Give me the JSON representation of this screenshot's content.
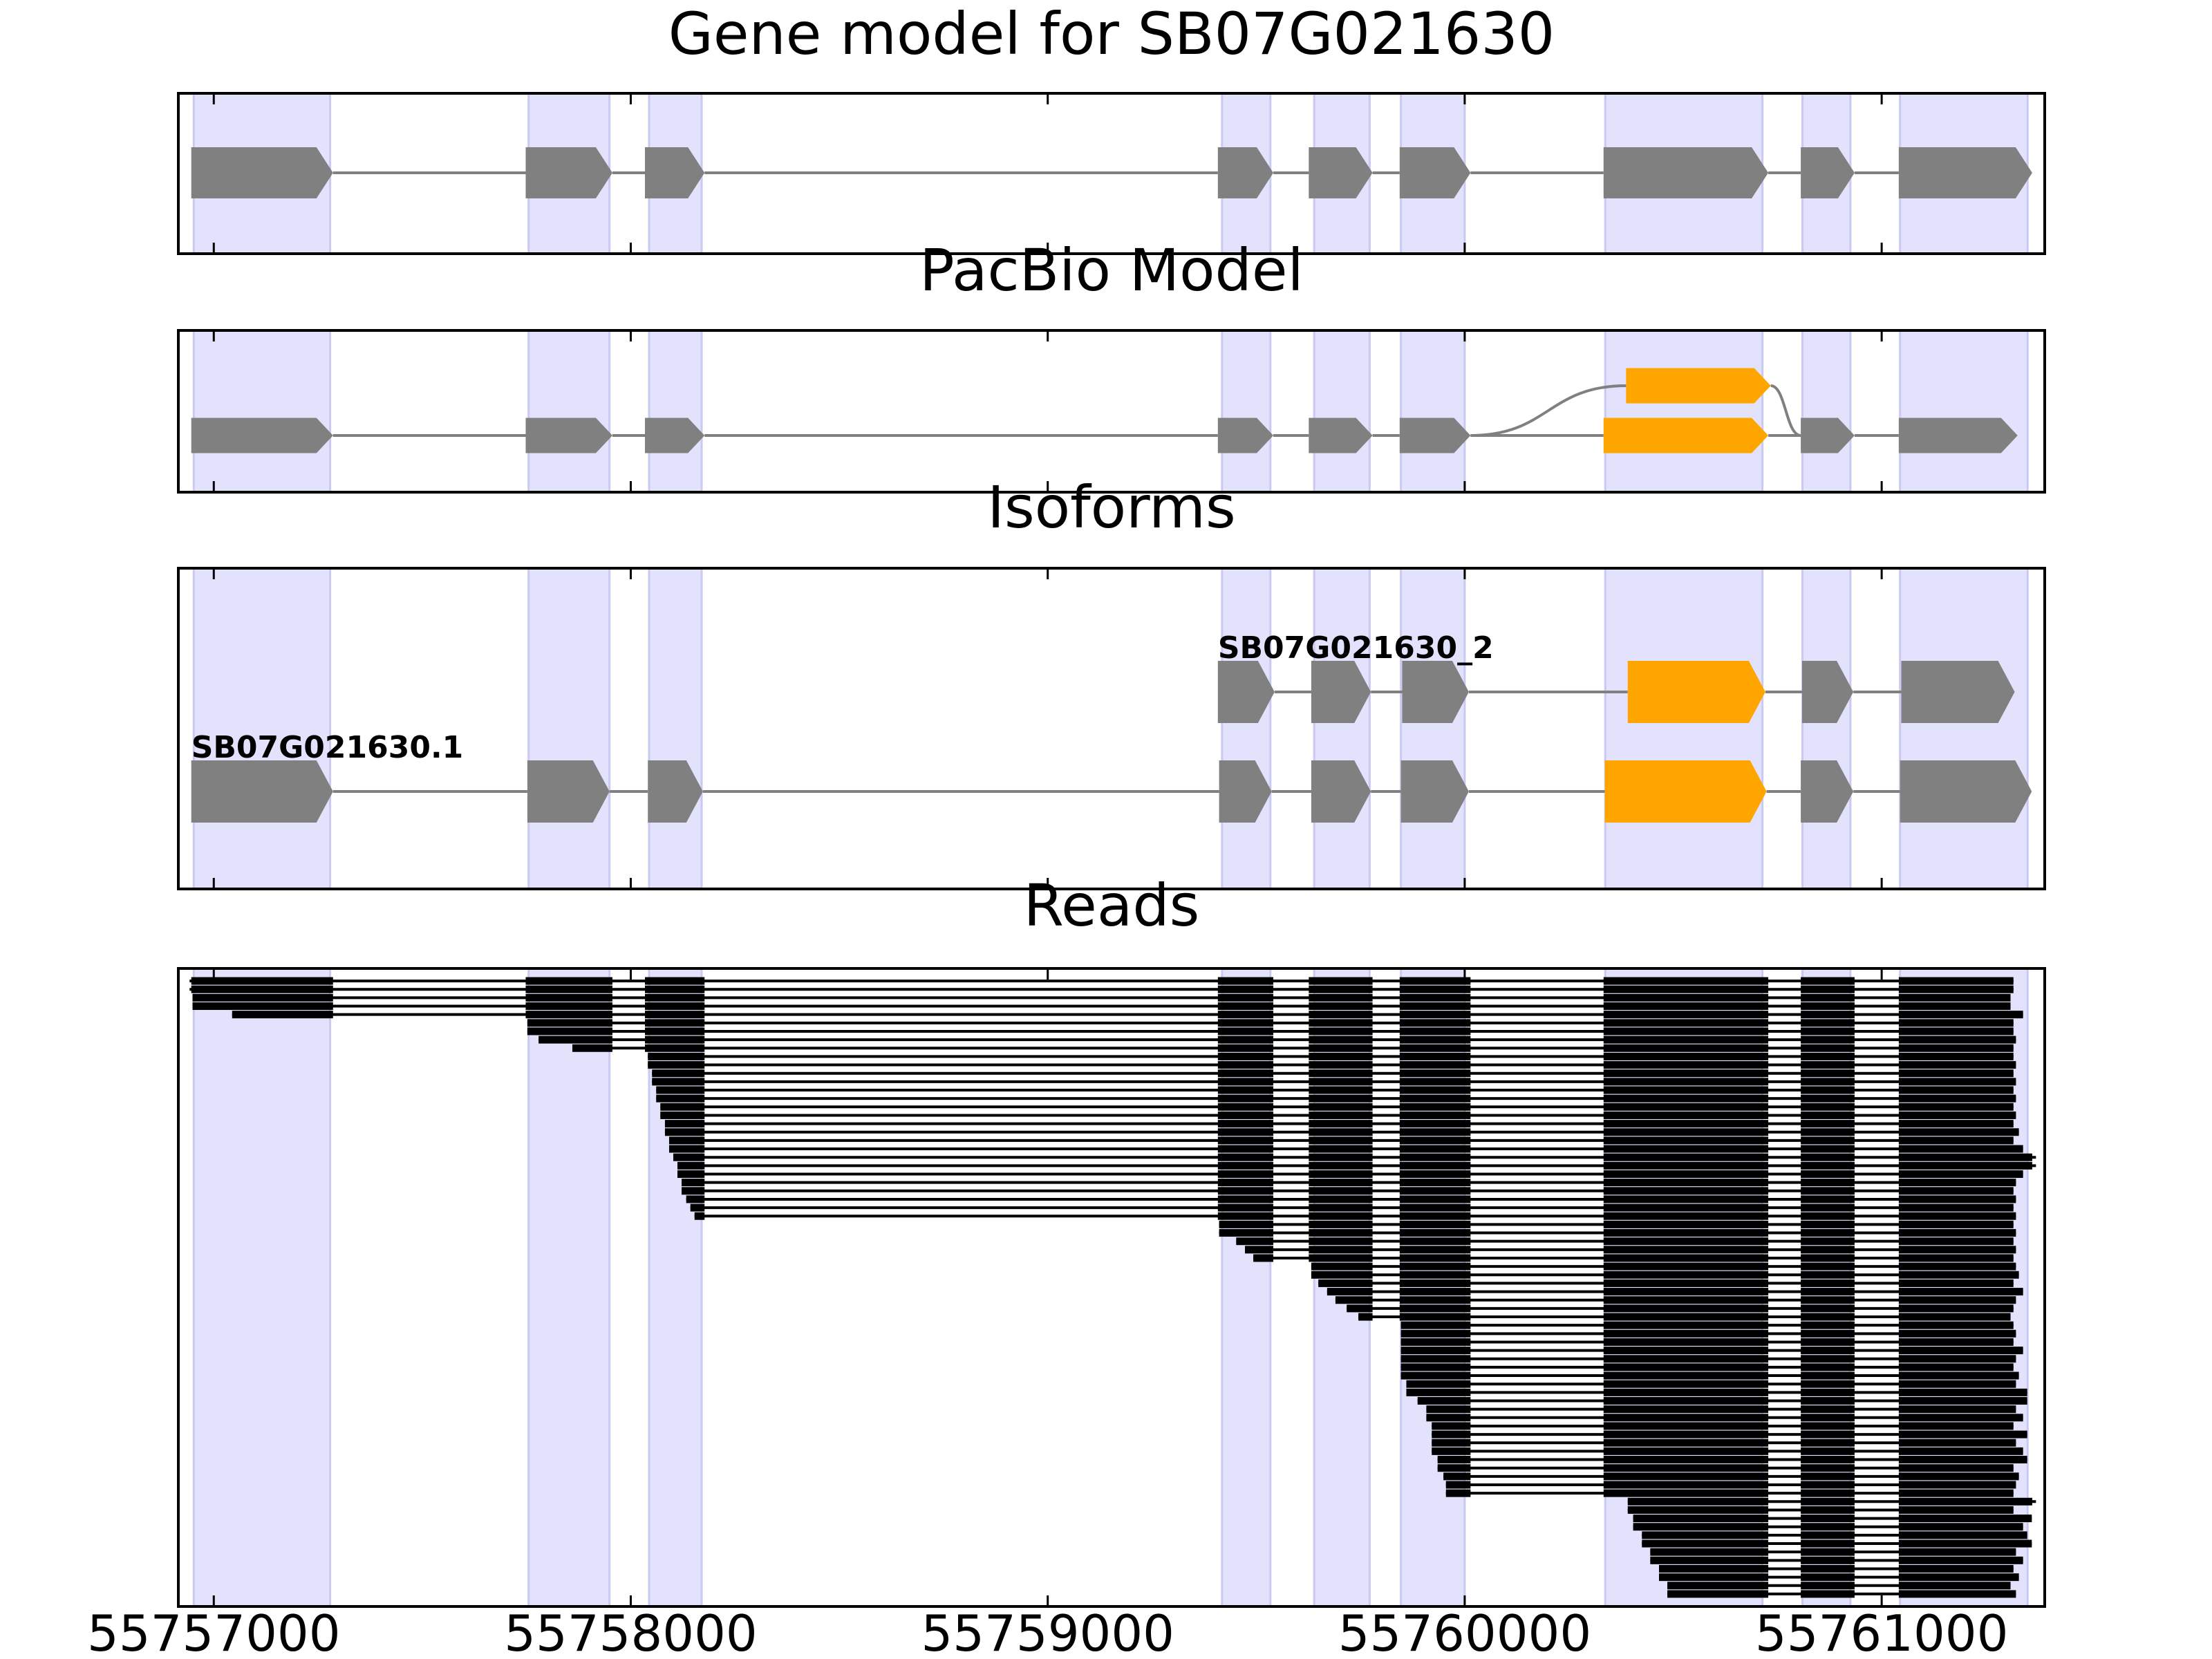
{
  "chart_data": {
    "type": "gene-tracks",
    "xlim": [
      55756915,
      55761391
    ],
    "xticks": [
      55757000,
      55758000,
      55759000,
      55760000,
      55761000
    ],
    "highlight_color": "#e2e2fc",
    "highlights": [
      [
        55756952,
        55757279
      ],
      [
        55757755,
        55757949
      ],
      [
        55758044,
        55758170
      ],
      [
        55759418,
        55759534
      ],
      [
        55759639,
        55759772
      ],
      [
        55759847,
        55760000
      ],
      [
        55760337,
        55760714
      ],
      [
        55760810,
        55760925
      ],
      [
        55761044,
        55761350
      ]
    ],
    "panels": [
      {
        "title": "Gene model for SB07G021630",
        "isoforms": [
          {
            "exons": [
              [
                55756946,
                55757286
              ],
              [
                55757748,
                55757956
              ],
              [
                55758034,
                55758177
              ],
              [
                55759408,
                55759541
              ],
              [
                55759626,
                55759779
              ],
              [
                55759844,
                55760014
              ],
              [
                55760333,
                55760728
              ],
              [
                55760806,
                55760935
              ],
              [
                55761041,
                55761361
              ]
            ],
            "colors": [
              "#808080",
              "#808080",
              "#808080",
              "#808080",
              "#808080",
              "#808080",
              "#808080",
              "#808080",
              "#808080"
            ]
          }
        ]
      },
      {
        "title": "PacBio Model",
        "isoforms": [
          {
            "exons": [
              [
                55756946,
                55757286
              ],
              [
                55757748,
                55757956
              ],
              [
                55758034,
                55758177
              ],
              [
                55759408,
                55759541
              ],
              [
                55759626,
                55759779
              ],
              [
                55759844,
                55760014
              ],
              [
                55760333,
                55760728
              ],
              [
                55760806,
                55760935
              ],
              [
                55761041,
                55761326
              ]
            ],
            "colors": [
              "#808080",
              "#808080",
              "#808080",
              "#808080",
              "#808080",
              "#808080",
              "#ffa500",
              "#808080",
              "#808080"
            ]
          },
          {
            "exons": [
              [
                55760387,
                55760734
              ]
            ],
            "colors": [
              "#ffa500"
            ],
            "junction_from": 55760014,
            "junction_to": 55760806
          }
        ]
      },
      {
        "title": "Isoforms",
        "isoforms": [
          {
            "name": "SB07G021630.1",
            "exons": [
              [
                55756946,
                55757286
              ],
              [
                55757752,
                55757949
              ],
              [
                55758041,
                55758173
              ],
              [
                55759411,
                55759537
              ],
              [
                55759632,
                55759775
              ],
              [
                55759847,
                55760010
              ],
              [
                55760336,
                55760724
              ],
              [
                55760806,
                55760932
              ],
              [
                55761044,
                55761360
              ]
            ],
            "colors": [
              "#808080",
              "#808080",
              "#808080",
              "#808080",
              "#808080",
              "#808080",
              "#ffa500",
              "#808080",
              "#808080"
            ]
          },
          {
            "name": "SB07G021630_2",
            "exons": [
              [
                55759408,
                55759544
              ],
              [
                55759632,
                55759775
              ],
              [
                55759850,
                55760010
              ],
              [
                55760391,
                55760721
              ],
              [
                55760809,
                55760932
              ],
              [
                55761047,
                55761319
              ]
            ],
            "colors": [
              "#808080",
              "#808080",
              "#808080",
              "#ffa500",
              "#808080",
              "#808080"
            ]
          }
        ]
      },
      {
        "title": "Reads",
        "read_color": "#000000",
        "reads": [
          [
            55756942,
            55761316
          ],
          [
            55756942,
            55761316
          ],
          [
            55756949,
            55761309
          ],
          [
            55756949,
            55761309
          ],
          [
            55757044,
            55761339
          ],
          [
            55757752,
            55761316
          ],
          [
            55757752,
            55761316
          ],
          [
            55757779,
            55761322
          ],
          [
            55757860,
            55761316
          ],
          [
            55758041,
            55761316
          ],
          [
            55758041,
            55761322
          ],
          [
            55758051,
            55761316
          ],
          [
            55758051,
            55761322
          ],
          [
            55758061,
            55761316
          ],
          [
            55758061,
            55761322
          ],
          [
            55758071,
            55761316
          ],
          [
            55758071,
            55761322
          ],
          [
            55758082,
            55761316
          ],
          [
            55758082,
            55761329
          ],
          [
            55758092,
            55761316
          ],
          [
            55758092,
            55761339
          ],
          [
            55758102,
            55761370
          ],
          [
            55758112,
            55761370
          ],
          [
            55758112,
            55761339
          ],
          [
            55758122,
            55761322
          ],
          [
            55758122,
            55761316
          ],
          [
            55758133,
            55761322
          ],
          [
            55758143,
            55761316
          ],
          [
            55758153,
            55761322
          ],
          [
            55759411,
            55761316
          ],
          [
            55759411,
            55761322
          ],
          [
            55759452,
            55761316
          ],
          [
            55759473,
            55761322
          ],
          [
            55759493,
            55761316
          ],
          [
            55759632,
            55761322
          ],
          [
            55759632,
            55761329
          ],
          [
            55759649,
            55761316
          ],
          [
            55759670,
            55761339
          ],
          [
            55759690,
            55761322
          ],
          [
            55759717,
            55761316
          ],
          [
            55759745,
            55761309
          ],
          [
            55759847,
            55761316
          ],
          [
            55759847,
            55761322
          ],
          [
            55759847,
            55761316
          ],
          [
            55759847,
            55761339
          ],
          [
            55759847,
            55761322
          ],
          [
            55759847,
            55761316
          ],
          [
            55759847,
            55761329
          ],
          [
            55759860,
            55761322
          ],
          [
            55759860,
            55761349
          ],
          [
            55759887,
            55761349
          ],
          [
            55759908,
            55761322
          ],
          [
            55759908,
            55761339
          ],
          [
            55759921,
            55761316
          ],
          [
            55759921,
            55761349
          ],
          [
            55759921,
            55761322
          ],
          [
            55759921,
            55761339
          ],
          [
            55759935,
            55761349
          ],
          [
            55759935,
            55761316
          ],
          [
            55759949,
            55761329
          ],
          [
            55759955,
            55761322
          ],
          [
            55759955,
            55761316
          ],
          [
            55760391,
            55761370
          ],
          [
            55760391,
            55761316
          ],
          [
            55760404,
            55761360
          ],
          [
            55760404,
            55761339
          ],
          [
            55760425,
            55761349
          ],
          [
            55760425,
            55761360
          ],
          [
            55760445,
            55761322
          ],
          [
            55760445,
            55761339
          ],
          [
            55760466,
            55761316
          ],
          [
            55760466,
            55761329
          ],
          [
            55760486,
            55761309
          ],
          [
            55760486,
            55761322
          ]
        ]
      }
    ]
  }
}
